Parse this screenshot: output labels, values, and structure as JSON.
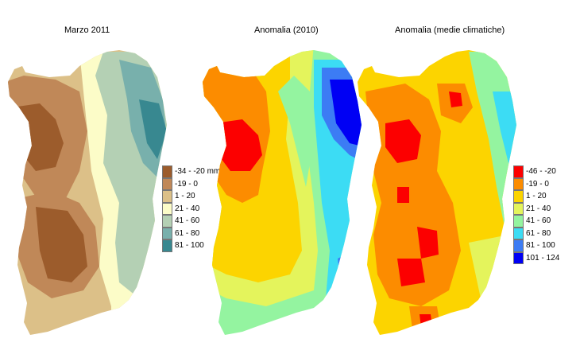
{
  "panels": [
    {
      "title": "Marzo 2011"
    },
    {
      "title": "Anomalia (2010)"
    },
    {
      "title": "Anomalia (medie climatiche)"
    }
  ],
  "legend_precip": {
    "items": [
      {
        "label": "-34 - -20 mm",
        "color": "#9c5c2c"
      },
      {
        "label": "-19 - 0",
        "color": "#c08858"
      },
      {
        "label": "1 - 20",
        "color": "#dcc088"
      },
      {
        "label": "21 - 40",
        "color": "#fcfcc8"
      },
      {
        "label": "41 - 60",
        "color": "#b4d0b4"
      },
      {
        "label": "61 - 80",
        "color": "#78b0ac"
      },
      {
        "label": "81 - 100",
        "color": "#388890"
      }
    ]
  },
  "legend_anom": {
    "items": [
      {
        "label": "-46 - -20",
        "color": "#fc0000"
      },
      {
        "label": "-19 - 0",
        "color": "#fc8c00"
      },
      {
        "label": "1 - 20",
        "color": "#fcd400"
      },
      {
        "label": "21 - 40",
        "color": "#e4f45c"
      },
      {
        "label": "41 - 60",
        "color": "#94f4a0"
      },
      {
        "label": "61 - 80",
        "color": "#3cdcf4"
      },
      {
        "label": "81 - 100",
        "color": "#3c7cf4"
      },
      {
        "label": "101 - 124",
        "color": "#0000f4"
      }
    ]
  }
}
